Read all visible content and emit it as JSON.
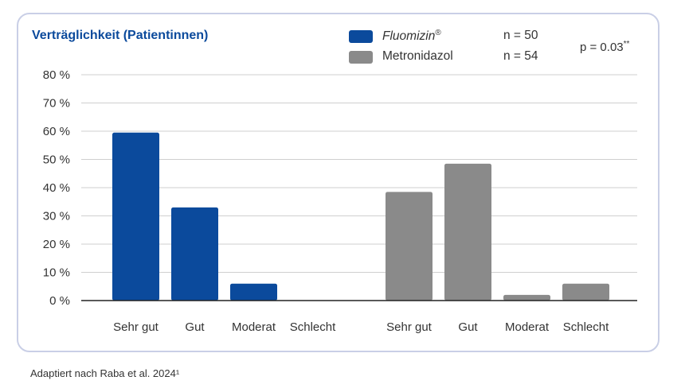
{
  "title": "Verträglichkeit (Patientinnen)",
  "legend": [
    {
      "name": "Fluomizin",
      "mark": "®",
      "n": "n = 50",
      "italic": true,
      "color": "#0b4a9c"
    },
    {
      "name": "Metronidazol",
      "mark": "",
      "n": "n = 54",
      "italic": false,
      "color": "#8a8a8a"
    }
  ],
  "pvalue": "p = 0.03",
  "pvalue_mark": "**",
  "source": "Adaptiert nach Raba et al. 2024¹",
  "chart_data": {
    "type": "bar",
    "categories": [
      "Sehr gut",
      "Gut",
      "Moderat",
      "Schlecht"
    ],
    "series": [
      {
        "name": "Fluomizin®",
        "color": "#0b4a9c",
        "values": [
          59.5,
          33,
          6,
          0
        ]
      },
      {
        "name": "Metronidazol",
        "color": "#8a8a8a",
        "values": [
          38.5,
          48.5,
          2,
          6
        ]
      }
    ],
    "ylim": [
      0,
      80
    ],
    "yticks": [
      "0 %",
      "10 %",
      "20 %",
      "30 %",
      "40 %",
      "50 %",
      "60 %",
      "70 %",
      "80 %"
    ],
    "grid": true
  }
}
